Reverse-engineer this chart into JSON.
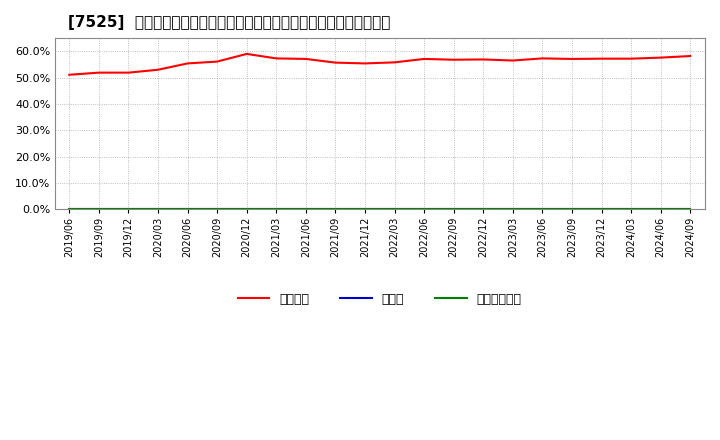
{
  "title": "[7525]  自己資本、のれん、繰延税金資産の総資産に対する比率の推移",
  "x_labels": [
    "2019/06",
    "2019/09",
    "2019/12",
    "2020/03",
    "2020/06",
    "2020/09",
    "2020/12",
    "2021/03",
    "2021/06",
    "2021/09",
    "2021/12",
    "2022/03",
    "2022/06",
    "2022/09",
    "2022/12",
    "2023/03",
    "2023/06",
    "2023/09",
    "2023/12",
    "2024/03",
    "2024/06",
    "2024/09"
  ],
  "equity_ratio": [
    0.511,
    0.519,
    0.519,
    0.53,
    0.554,
    0.561,
    0.59,
    0.573,
    0.571,
    0.557,
    0.554,
    0.558,
    0.571,
    0.568,
    0.569,
    0.565,
    0.573,
    0.571,
    0.572,
    0.572,
    0.576,
    0.582
  ],
  "goodwill_ratio": [
    0,
    0,
    0,
    0,
    0,
    0,
    0,
    0,
    0,
    0,
    0,
    0,
    0,
    0,
    0,
    0,
    0,
    0,
    0,
    0,
    0,
    0
  ],
  "deferred_tax_ratio": [
    0,
    0,
    0,
    0,
    0,
    0,
    0,
    0,
    0,
    0,
    0,
    0,
    0,
    0,
    0,
    0,
    0,
    0,
    0,
    0,
    0,
    0
  ],
  "equity_color": "#ff0000",
  "goodwill_color": "#0000cc",
  "deferred_tax_color": "#008000",
  "fig_background": "#ffffff",
  "ax_background": "#ffffff",
  "grid_color": "#aaaaaa",
  "ylim": [
    0.0,
    0.65
  ],
  "yticks": [
    0.0,
    0.1,
    0.2,
    0.3,
    0.4,
    0.5,
    0.6
  ],
  "legend_labels": [
    "自己資本",
    "のれん",
    "繰延税金資産"
  ],
  "title_fontsize": 11,
  "tick_fontsize": 7,
  "legend_fontsize": 9
}
